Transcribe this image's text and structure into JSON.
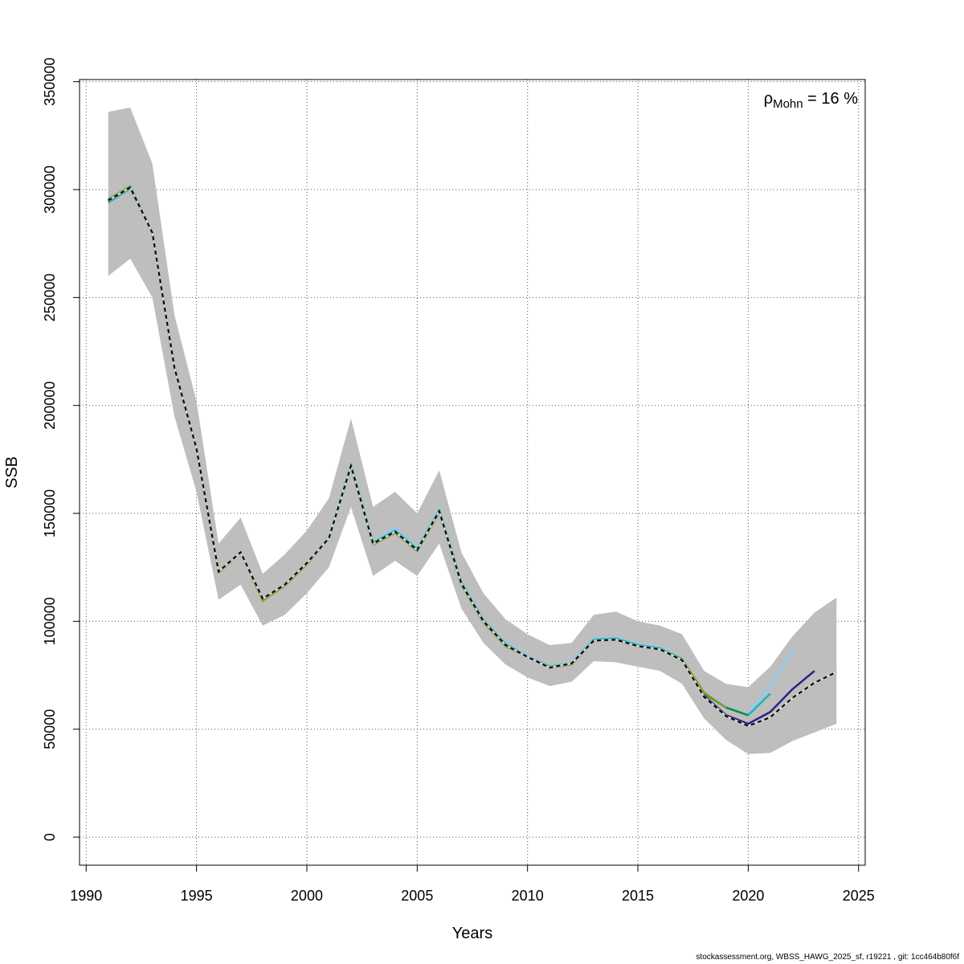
{
  "chart_data": {
    "type": "line",
    "xlabel": "Years",
    "ylabel": "SSB",
    "xlim": [
      1989.7,
      2025.3
    ],
    "ylim": [
      -13000,
      351000
    ],
    "x_ticks": [
      1990,
      1995,
      2000,
      2005,
      2010,
      2015,
      2020,
      2025
    ],
    "x_tick_labels": [
      "1990",
      "1995",
      "2000",
      "2005",
      "2010",
      "2015",
      "2020",
      "2025"
    ],
    "y_ticks": [
      0,
      50000,
      100000,
      150000,
      200000,
      250000,
      300000,
      350000
    ],
    "y_tick_labels": [
      "0",
      "50000",
      "100000",
      "150000",
      "200000",
      "250000",
      "300000",
      "350000"
    ],
    "grid": true,
    "annotation": {
      "rho": "ρ",
      "sub": "Mohn",
      "rest": " = 16 %"
    },
    "confidence_band": {
      "x": [
        1991,
        1992,
        1993,
        1994,
        1995,
        1996,
        1997,
        1998,
        1999,
        2000,
        2001,
        2002,
        2003,
        2004,
        2005,
        2006,
        2007,
        2008,
        2009,
        2010,
        2011,
        2012,
        2013,
        2014,
        2015,
        2016,
        2017,
        2018,
        2019,
        2020,
        2021,
        2022,
        2023,
        2024
      ],
      "lower": [
        260000,
        268000,
        250000,
        195000,
        160000,
        110000,
        117000,
        98000,
        103000,
        113000,
        125000,
        153000,
        121000,
        128000,
        121000,
        136000,
        106000,
        90000,
        80000,
        74000,
        70000,
        72000,
        81500,
        81000,
        79000,
        77000,
        71000,
        55000,
        45000,
        38500,
        39000,
        44500,
        48500,
        52500
      ],
      "upper": [
        336000,
        338000,
        312000,
        242000,
        202000,
        136000,
        148000,
        122000,
        131000,
        142000,
        157000,
        194000,
        153000,
        160000,
        150000,
        170000,
        132000,
        113000,
        101000,
        94000,
        89000,
        90000,
        103000,
        104500,
        100000,
        98000,
        94000,
        77000,
        71000,
        69500,
        79000,
        93000,
        104000,
        111000
      ]
    },
    "series": [
      {
        "color": "#87cefa",
        "x": [
          1991,
          1992,
          1993,
          1994,
          1995,
          1996,
          1997,
          1998,
          1999,
          2000,
          2001,
          2002,
          2003,
          2004,
          2005,
          2006,
          2007,
          2008,
          2009,
          2010,
          2011,
          2012,
          2013,
          2014,
          2015,
          2016,
          2017,
          2018,
          2019,
          2020,
          2021,
          2022
        ],
        "values": [
          294500,
          300500,
          280000,
          218000,
          180500,
          123000,
          132000,
          110500,
          117000,
          127000,
          139000,
          173000,
          137000,
          143000,
          134000,
          152000,
          118500,
          100500,
          90000,
          84000,
          79000,
          81000,
          92000,
          92500,
          89500,
          88000,
          83000,
          67000,
          60500,
          57000,
          70000,
          86000
        ]
      },
      {
        "color": "#20b2aa",
        "x": [
          1991,
          1992,
          1993,
          1994,
          1995,
          1996,
          1997,
          1998,
          1999,
          2000,
          2001,
          2002,
          2003,
          2004,
          2005,
          2006,
          2007,
          2008,
          2009,
          2010,
          2011,
          2012,
          2013,
          2014,
          2015,
          2016,
          2017,
          2018,
          2019,
          2020,
          2021
        ],
        "values": [
          294000,
          300500,
          280000,
          217500,
          180000,
          123000,
          132000,
          110500,
          117000,
          127000,
          138500,
          172500,
          136500,
          142000,
          133500,
          151500,
          118000,
          100500,
          89500,
          83500,
          79000,
          80500,
          91500,
          92000,
          89000,
          87500,
          82500,
          66500,
          60000,
          56500,
          66500
        ]
      },
      {
        "color": "#2e1f84",
        "x": [
          1991,
          1992,
          1993,
          1994,
          1995,
          1996,
          1997,
          1998,
          1999,
          2000,
          2001,
          2002,
          2003,
          2004,
          2005,
          2006,
          2007,
          2008,
          2009,
          2010,
          2011,
          2012,
          2013,
          2014,
          2015,
          2016,
          2017,
          2018,
          2019,
          2020,
          2021,
          2022,
          2023
        ],
        "values": [
          295000,
          301000,
          280000,
          217500,
          180000,
          123000,
          132000,
          110500,
          117000,
          127000,
          138500,
          172000,
          136000,
          141500,
          133000,
          151000,
          117500,
          100000,
          89000,
          83500,
          78500,
          80500,
          91000,
          91500,
          88500,
          87000,
          82000,
          65500,
          56500,
          52500,
          58000,
          68500,
          77000
        ]
      },
      {
        "color": "#1b8a3a",
        "x": [
          1991,
          1992,
          1993,
          1994,
          1995,
          1996,
          1997,
          1998,
          1999,
          2000,
          2001,
          2002,
          2003,
          2004,
          2005,
          2006,
          2007,
          2008,
          2009,
          2010,
          2011,
          2012,
          2013,
          2014,
          2015,
          2016,
          2017,
          2018,
          2019,
          2020
        ],
        "values": [
          295500,
          301500,
          280000,
          217500,
          180000,
          123000,
          132000,
          110000,
          116500,
          126500,
          138500,
          172000,
          136000,
          141500,
          133000,
          151000,
          117500,
          100000,
          89000,
          83500,
          78500,
          80500,
          91000,
          91500,
          88500,
          87000,
          82500,
          66500,
          60000,
          56500
        ]
      },
      {
        "color": "#8a9a2a",
        "x": [
          1991,
          1992,
          1993,
          1994,
          1995,
          1996,
          1997,
          1998,
          1999,
          2000,
          2001,
          2002,
          2003,
          2004,
          2005,
          2006,
          2007,
          2008,
          2009,
          2010,
          2011,
          2012,
          2013,
          2014,
          2015,
          2016,
          2017,
          2018,
          2019
        ],
        "values": [
          295500,
          301500,
          280000,
          217500,
          180000,
          122500,
          132000,
          109500,
          116500,
          126500,
          138500,
          171500,
          135500,
          141000,
          132500,
          150500,
          117000,
          99500,
          88500,
          83500,
          78500,
          80000,
          91000,
          91500,
          88500,
          87000,
          82500,
          67000,
          60000
        ]
      },
      {
        "color": "#000000",
        "dashed": true,
        "x": [
          1991,
          1992,
          1993,
          1994,
          1995,
          1996,
          1997,
          1998,
          1999,
          2000,
          2001,
          2002,
          2003,
          2004,
          2005,
          2006,
          2007,
          2008,
          2009,
          2010,
          2011,
          2012,
          2013,
          2014,
          2015,
          2016,
          2017,
          2018,
          2019,
          2020,
          2021,
          2022,
          2023,
          2024
        ],
        "values": [
          295000,
          301000,
          280000,
          217500,
          180000,
          123000,
          132000,
          110500,
          117000,
          127000,
          138500,
          172000,
          136000,
          141500,
          133000,
          151000,
          117500,
          100000,
          89000,
          83500,
          78500,
          80500,
          91000,
          91500,
          88500,
          87000,
          82000,
          65000,
          56000,
          51500,
          55500,
          64500,
          71500,
          76500
        ]
      }
    ]
  },
  "footer": "stockassessment.org, WBSS_HAWG_2025_sf, r19221 , git: 1cc464b80f6f"
}
